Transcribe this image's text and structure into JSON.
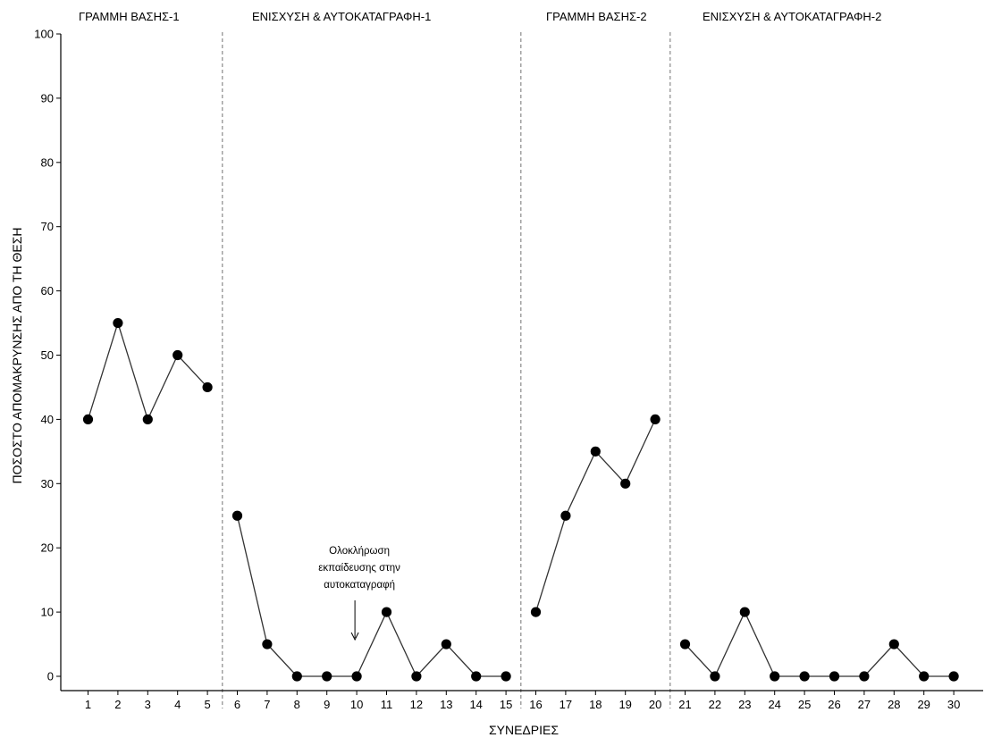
{
  "chart_data": {
    "type": "line",
    "title": "",
    "xlabel": "ΣΥΝΕΔΡΙΕΣ",
    "ylabel": "ΠΟΣΟΣΤΟ ΑΠΟΜΑΚΡΥΝΣΗΣ ΑΠΟ ΤΗ ΘΕΣΗ",
    "xlim": [
      1,
      30
    ],
    "ylim": [
      0,
      100
    ],
    "yticks": [
      0,
      10,
      20,
      30,
      40,
      50,
      60,
      70,
      80,
      90,
      100
    ],
    "xticks": [
      1,
      2,
      3,
      4,
      5,
      6,
      7,
      8,
      9,
      10,
      11,
      12,
      13,
      14,
      15,
      16,
      17,
      18,
      19,
      20,
      21,
      22,
      23,
      24,
      25,
      26,
      27,
      28,
      29,
      30
    ],
    "grid": false,
    "phases": [
      {
        "label": "ΓΡΑΜΜΗ ΒΑΣΗΣ-1",
        "start": 1,
        "end": 5
      },
      {
        "label": "ΕΝΙΣΧΥΣΗ & ΑΥΤΟΚΑΤΑΓΡΑΦΗ-1",
        "start": 6,
        "end": 15
      },
      {
        "label": "ΓΡΑΜΜΗ ΒΑΣΗΣ-2",
        "start": 16,
        "end": 20
      },
      {
        "label": "ΕΝΙΣΧΥΣΗ & ΑΥΤΟΚΑΤΑΓΡΑΦΗ-2",
        "start": 21,
        "end": 30
      }
    ],
    "series": [
      {
        "values": [
          [
            1,
            40
          ],
          [
            2,
            55
          ],
          [
            3,
            40
          ],
          [
            4,
            50
          ],
          [
            5,
            45
          ],
          [
            6,
            25
          ],
          [
            7,
            5
          ],
          [
            8,
            0
          ],
          [
            9,
            0
          ],
          [
            10,
            0
          ],
          [
            11,
            10
          ],
          [
            12,
            0
          ],
          [
            13,
            5
          ],
          [
            14,
            0
          ],
          [
            15,
            0
          ],
          [
            16,
            10
          ],
          [
            17,
            25
          ],
          [
            18,
            35
          ],
          [
            19,
            30
          ],
          [
            20,
            40
          ],
          [
            21,
            5
          ],
          [
            22,
            0
          ],
          [
            23,
            10
          ],
          [
            24,
            0
          ],
          [
            25,
            0
          ],
          [
            26,
            0
          ],
          [
            27,
            0
          ],
          [
            28,
            5
          ],
          [
            29,
            0
          ],
          [
            30,
            0
          ]
        ]
      }
    ],
    "annotation": {
      "lines": [
        "Ολοκλήρωση",
        "εκπαίδευσης στην",
        "αυτοκαταγραφή"
      ],
      "x": 10
    }
  }
}
